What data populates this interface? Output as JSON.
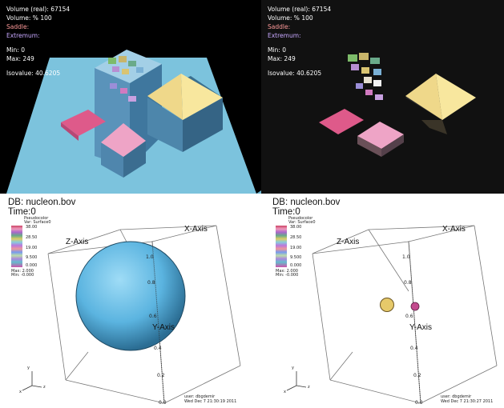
{
  "top_left": {
    "volume_real": "Volume  (real):  67154",
    "volume_pct": "Volume:  %  100",
    "saddle": "Saddle:",
    "extremum": "Extremum:",
    "min": "Min:  0",
    "max": "Max:  249",
    "isovalue": "Isovalue:  40.6205"
  },
  "top_right": {
    "volume_real": "Volume  (real):  67154",
    "volume_pct": "Volume:  %  100",
    "saddle": "Saddle:",
    "extremum": "Extremum:",
    "min": "Min:  0",
    "max": "Max:  249",
    "isovalue": "Isovalue:  40.6205"
  },
  "bottom_left": {
    "db": "DB: nucleon.bov",
    "time": "Time:0",
    "legend_title": "Pseudocolor",
    "legend_var": "Var: Surface0",
    "legend_max_val": "38.00",
    "legend_v2": "28.50",
    "legend_v3": "19.00",
    "legend_v4": "9.500",
    "legend_min_val": "0.000",
    "legend_max": "Max: 2.000",
    "legend_min": "Min: -0.000",
    "x_axis": "X-Axis",
    "y_axis": "Y-Axis",
    "z_axis": "Z-Axis",
    "user": "user: dbgdemir",
    "date": "Wed Dec  7 21:30:19 2011",
    "tick_00": "0.0",
    "tick_02": "0.2",
    "tick_04": "0.4",
    "tick_06": "0.6",
    "tick_08": "0.8",
    "tick_10": "1.0",
    "tri_y": "y",
    "tri_x": "x",
    "tri_z": "z"
  },
  "bottom_right": {
    "db": "DB: nucleon.bov",
    "time": "Time:0",
    "legend_title": "Pseudocolor",
    "legend_var": "Var: Surface0",
    "legend_max_val": "38.00",
    "legend_v2": "28.50",
    "legend_v3": "19.00",
    "legend_v4": "9.500",
    "legend_min_val": "0.000",
    "legend_max": "Max: 2.000",
    "legend_min": "Min: -0.000",
    "x_axis": "X-Axis",
    "y_axis": "Y-Axis",
    "z_axis": "Z-Axis",
    "user": "user: dbgdemir",
    "date": "Wed Dec  7 21:30:27 2011",
    "tick_00": "0.0",
    "tick_02": "0.2",
    "tick_04": "0.4",
    "tick_06": "0.6",
    "tick_08": "0.8",
    "tick_10": "1.0",
    "tri_y": "y",
    "tri_x": "x",
    "tri_z": "z"
  },
  "colors": {
    "sky_blue": "#7cc3dd",
    "sphere_blue": "#5bb4e0",
    "pyramid_yellow": "#f2dc8a",
    "diamond_pink": "#e46596",
    "diamond_light_pink": "#f0a8c8"
  }
}
